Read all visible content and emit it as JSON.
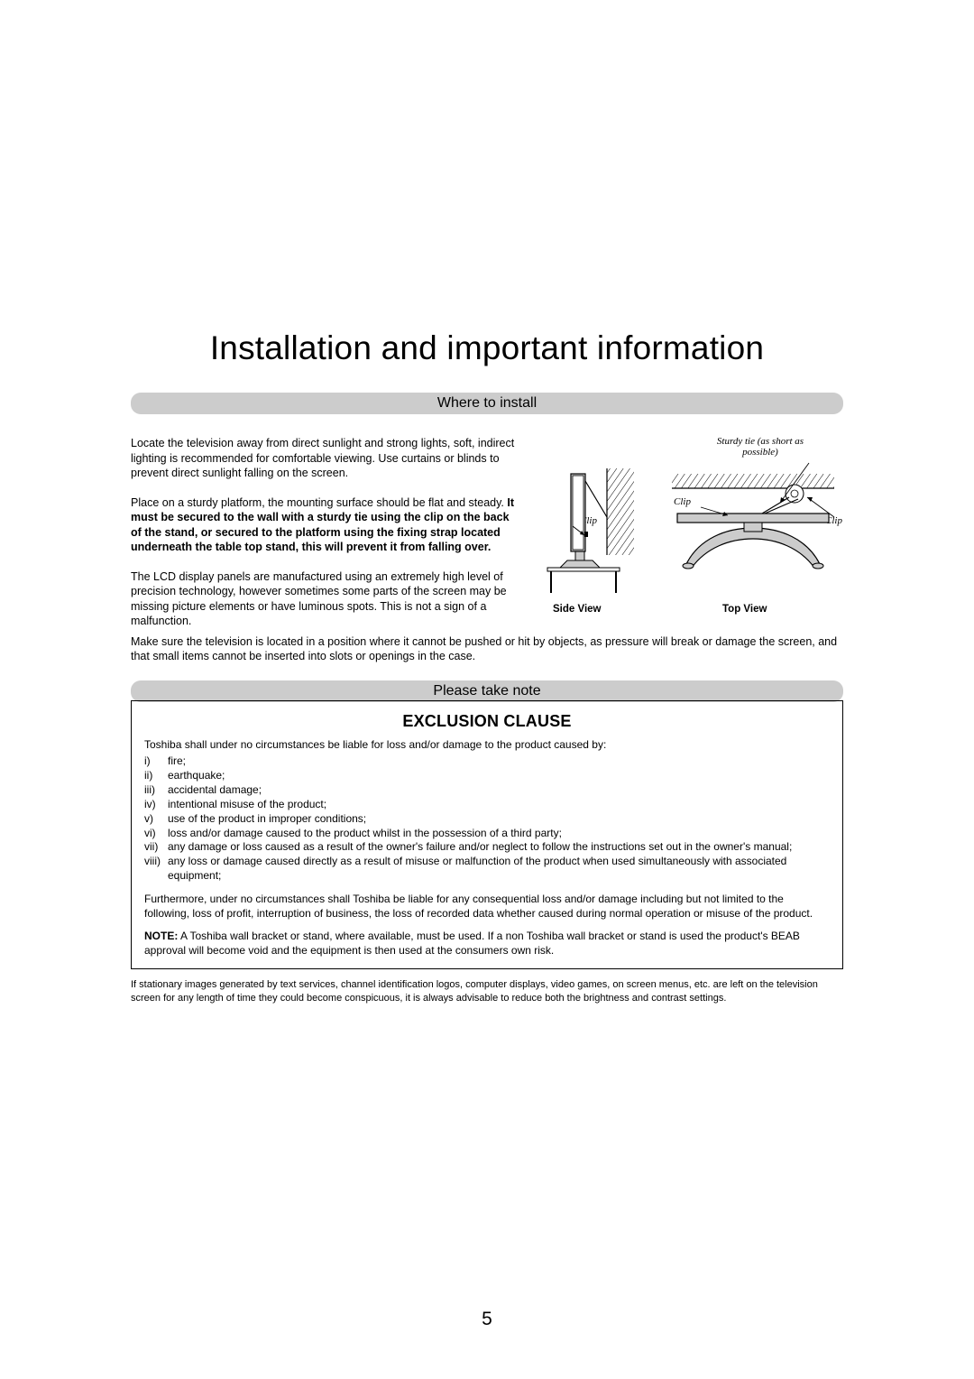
{
  "title": "Installation and important information",
  "sections": {
    "where": {
      "banner": "Where to install",
      "p1": "Locate the television away from direct sunlight and strong lights, soft, indirect lighting is recommended for comfortable viewing. Use curtains or blinds to prevent direct sunlight falling on the screen.",
      "p2a": "Place on a sturdy platform, the mounting surface should be flat and steady. ",
      "p2b": "It must be secured to the wall with a sturdy tie using the clip on the back of the stand, or secured to the platform using the fixing strap located underneath the table top stand, this will prevent it from falling over.",
      "p3": "The LCD display panels are manufactured using an extremely high level of precision technology, however sometimes some parts of the screen may be missing picture elements or have luminous spots. This is not a sign of a malfunction.",
      "p4": "Make sure the television is located in a position where it cannot be pushed or hit by objects, as pressure will break or damage the screen, and that small items cannot be inserted into slots or openings in the case."
    },
    "diagram": {
      "sturdy_tie": "Sturdy tie\n(as short as possible)",
      "clip": "Clip",
      "side_caption": "Side View",
      "top_caption": "Top View"
    },
    "note": {
      "banner": "Please take note",
      "box_title": "EXCLUSION CLAUSE",
      "intro": "Toshiba shall under no circumstances be liable for loss and/or damage to the product caused by:",
      "items": [
        {
          "num": "i)",
          "txt": "fire;"
        },
        {
          "num": "ii)",
          "txt": "earthquake;"
        },
        {
          "num": "iii)",
          "txt": "accidental damage;"
        },
        {
          "num": "iv)",
          "txt": "intentional misuse of the product;"
        },
        {
          "num": "v)",
          "txt": "use of the product in improper conditions;"
        },
        {
          "num": "vi)",
          "txt": "loss and/or damage caused to the product whilst in the possession of a third party;"
        },
        {
          "num": "vii)",
          "txt": "any damage or loss caused as a result of the owner's failure and/or neglect to follow the instructions set out in the owner's manual;"
        },
        {
          "num": "viii)",
          "txt": "any loss or damage caused directly as a result of misuse or malfunction of the product when used simultaneously with associated equipment;"
        }
      ],
      "after": "Furthermore, under no circumstances shall Toshiba be liable for any consequential loss and/or damage including but not limited to the following, loss of profit, interruption of business, the loss of recorded data whether caused during normal operation or misuse of the product.",
      "note_label": "NOTE:",
      "note_text": " A Toshiba wall bracket or stand, where available, must be used. If a non Toshiba wall bracket or stand is used the product's BEAB approval will become void and the equipment is then used at the consumers own risk."
    },
    "footnote": "If stationary images generated by text services, channel identification logos, computer displays, video games, on screen menus, etc. are left on the television screen for any length of time they could become conspicuous, it is always advisable to reduce both the brightness and contrast settings."
  },
  "page_number": "5",
  "colors": {
    "banner_bg": "#cccccc",
    "text": "#000000",
    "tv_fill": "#cccccc"
  }
}
